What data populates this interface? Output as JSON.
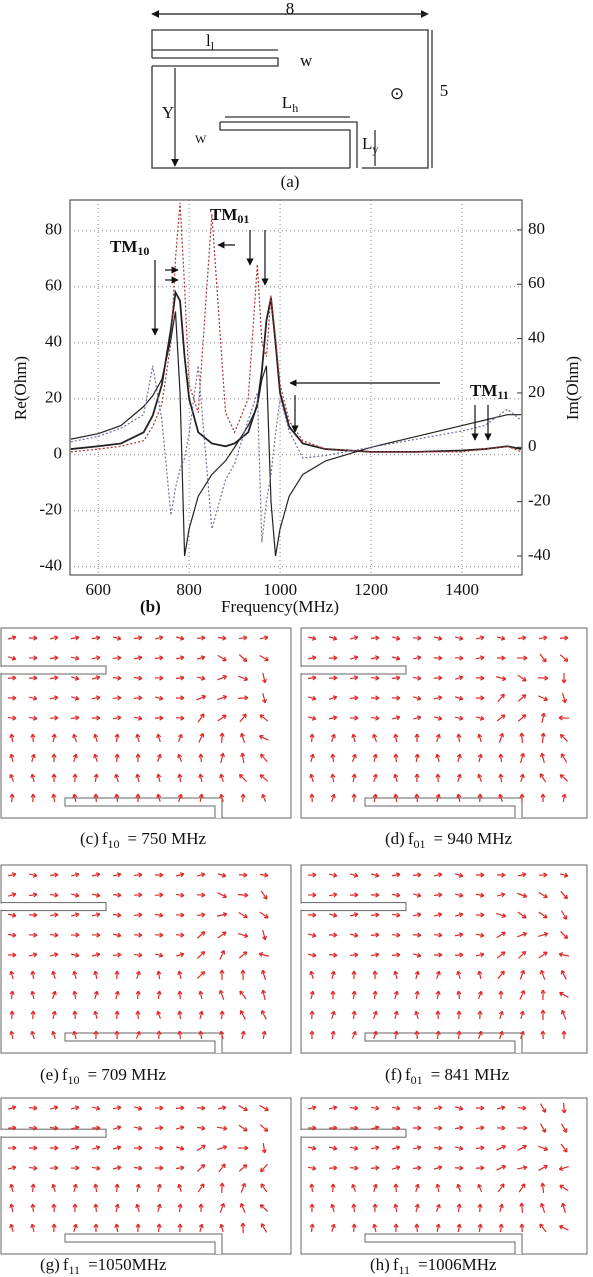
{
  "geometry": {
    "width": 8,
    "height": 5,
    "l1": {
      "main": "l",
      "sub": "l"
    },
    "w_top": "w",
    "y": "Y",
    "w_bottom": "W",
    "lh": {
      "main": "L",
      "sub": "h"
    },
    "ly": {
      "main": "L",
      "sub": "y"
    },
    "symbol": "⊙",
    "caption": "(a)"
  },
  "chart_data": {
    "type": "line",
    "caption": "(b)",
    "xlabel": "Frequency(MHz)",
    "ylabel": "Re(Ohm)",
    "y2label": "Im(Ohm)",
    "x": [
      540,
      600,
      650,
      700,
      720,
      740,
      760,
      770,
      780,
      790,
      800,
      820,
      850,
      880,
      900,
      930,
      950,
      960,
      970,
      980,
      990,
      1000,
      1020,
      1050,
      1100,
      1200,
      1300,
      1400,
      1450,
      1500,
      1530
    ],
    "series": [
      {
        "color": "#222222",
        "values": [
          2,
          3,
          4,
          8,
          14,
          25,
          45,
          58,
          55,
          35,
          20,
          8,
          4,
          3,
          4,
          8,
          18,
          30,
          48,
          56,
          40,
          22,
          10,
          4,
          2,
          1,
          1,
          1.5,
          2,
          3,
          2
        ]
      },
      {
        "color": "#b03030",
        "values": [
          1,
          2,
          3,
          5,
          10,
          18,
          40,
          70,
          90,
          60,
          25,
          15,
          86,
          15,
          8,
          20,
          68,
          40,
          35,
          57,
          42,
          25,
          12,
          5,
          2,
          1,
          1,
          1,
          2,
          3,
          1
        ]
      },
      {
        "color": "#222222",
        "axis": "y2",
        "values": [
          3,
          5,
          8,
          15,
          19,
          25,
          40,
          50,
          20,
          -40,
          -30,
          -18,
          -10,
          -5,
          0,
          8,
          15,
          25,
          30,
          -20,
          -40,
          -30,
          -18,
          -10,
          -5,
          0,
          4,
          8,
          10,
          12,
          12
        ]
      },
      {
        "color": "#7070a0",
        "axis": "y2",
        "values": [
          2,
          4,
          7,
          12,
          30,
          10,
          -25,
          -15,
          -8,
          -4,
          5,
          30,
          -30,
          -12,
          -6,
          10,
          20,
          -35,
          -20,
          -10,
          5,
          18,
          6,
          -4,
          -3,
          0,
          3,
          6,
          8,
          14,
          10
        ]
      }
    ],
    "xlim": [
      538,
      1532
    ],
    "xticks": [
      600,
      800,
      1000,
      1200,
      1400
    ],
    "ylim": [
      -43,
      91
    ],
    "yticks": [
      -40,
      -20,
      0,
      20,
      40,
      60,
      80
    ],
    "y2lim": [
      -47,
      91
    ],
    "y2ticks": [
      -40,
      -20,
      0,
      20,
      40,
      60,
      80
    ],
    "grid": true,
    "annotations": [
      {
        "main": "TM",
        "sub": "10"
      },
      {
        "main": "TM",
        "sub": "01"
      },
      {
        "main": "TM",
        "sub": "11"
      }
    ]
  },
  "field_plots": [
    {
      "label": "(c)",
      "symbol": "f",
      "sub": "10",
      "value": "= 750 MHz"
    },
    {
      "label": "(d)",
      "symbol": "f",
      "sub": "01",
      "value": "= 940 MHz"
    },
    {
      "label": "(e)",
      "symbol": "f",
      "sub": "10",
      "value": "= 709 MHz"
    },
    {
      "label": "(f)",
      "symbol": "f",
      "sub": "01",
      "value": "= 841 MHz"
    },
    {
      "label": "(g)",
      "symbol": "f",
      "sub": "11",
      "value": "=1050MHz"
    },
    {
      "label": "(h)",
      "symbol": "f",
      "sub": "11",
      "value": "=1006MHz"
    }
  ]
}
